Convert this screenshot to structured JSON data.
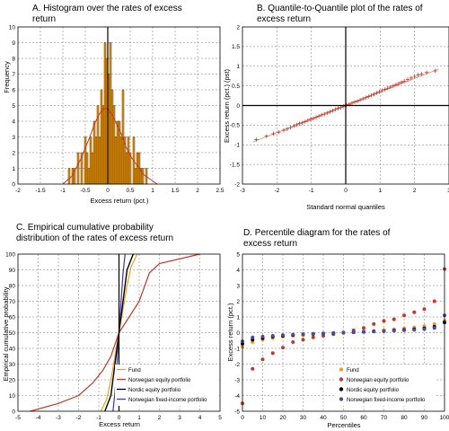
{
  "chart_data": [
    {
      "type": "bar",
      "title": "A. Histogram over the rates of excess return",
      "xlabel": "Excess return (pct.)",
      "ylabel": "Frequency",
      "xlim": [
        -2,
        2.5
      ],
      "ylim": [
        0,
        10
      ],
      "xticks": [
        "-2",
        "-1.5",
        "-1",
        "-0.5",
        "0",
        "0.5",
        "1",
        "1.5",
        "2",
        "2.5"
      ],
      "yticks": [
        "0",
        "1",
        "2",
        "3",
        "4",
        "5",
        "6",
        "7",
        "8",
        "9",
        "10"
      ],
      "grid": true,
      "colors": {
        "bar": "#e8950c",
        "bar_edge": "#2a1a00",
        "curve": "#c0392b"
      },
      "bin_width": 0.04,
      "bin_centers": [
        -0.86,
        -0.78,
        -0.74,
        -0.66,
        -0.58,
        -0.5,
        -0.46,
        -0.42,
        -0.38,
        -0.34,
        -0.3,
        -0.26,
        -0.22,
        -0.18,
        -0.14,
        -0.1,
        -0.06,
        -0.02,
        0.02,
        0.06,
        0.1,
        0.14,
        0.18,
        0.22,
        0.26,
        0.3,
        0.34,
        0.38,
        0.42,
        0.46,
        0.5,
        0.58,
        0.62,
        0.66,
        0.7,
        0.74,
        0.78,
        0.86
      ],
      "values": [
        1,
        1,
        1,
        2,
        2,
        3,
        2,
        1,
        3,
        2,
        4,
        3,
        5,
        3,
        6,
        5,
        9,
        8,
        7,
        9,
        6,
        5,
        3,
        4,
        4,
        3,
        6,
        3,
        2,
        3,
        2,
        3,
        1,
        2,
        2,
        1,
        1,
        1
      ],
      "density_curve": {
        "x": [
          -1.0,
          -0.8,
          -0.6,
          -0.4,
          -0.3,
          -0.2,
          -0.1,
          0.0,
          0.1,
          0.2,
          0.3,
          0.4,
          0.5,
          0.6,
          0.8,
          1.0,
          1.1
        ],
        "y": [
          0,
          0.5,
          1.6,
          3.0,
          3.8,
          4.4,
          4.8,
          4.8,
          4.4,
          3.8,
          3.2,
          2.4,
          1.8,
          1.4,
          0.6,
          0.2,
          0
        ]
      }
    },
    {
      "type": "scatter",
      "title": "B. Quantile-to-Quantile plot of the rates of excess return",
      "xlabel": "Standard normal quantiles",
      "ylabel": "Excess return (pct.) (pst)",
      "xlim": [
        -3,
        3
      ],
      "ylim": [
        -2,
        2
      ],
      "xticks": [
        "-3",
        "-2",
        "-1",
        "0",
        "1",
        "2",
        "3"
      ],
      "yticks": [
        "-2",
        "-1.5",
        "-1",
        "-0.5",
        "0",
        "0.5",
        "1",
        "1.5",
        "2"
      ],
      "grid": true,
      "colors": {
        "marker": "#c0392b",
        "line": "#e8a07a"
      },
      "reference_line": {
        "x": [
          -2.7,
          2.7
        ],
        "y": [
          -0.93,
          0.93
        ]
      },
      "points": {
        "x": [
          -2.6,
          -2.3,
          -2.1,
          -1.95,
          -1.8,
          -1.7,
          -1.6,
          -1.5,
          -1.42,
          -1.34,
          -1.26,
          -1.18,
          -1.1,
          -1.02,
          -0.94,
          -0.86,
          -0.78,
          -0.7,
          -0.62,
          -0.54,
          -0.46,
          -0.38,
          -0.3,
          -0.22,
          -0.14,
          -0.06,
          0.02,
          0.1,
          0.18,
          0.26,
          0.34,
          0.42,
          0.5,
          0.58,
          0.66,
          0.74,
          0.82,
          0.9,
          0.98,
          1.06,
          1.14,
          1.22,
          1.3,
          1.38,
          1.46,
          1.54,
          1.62,
          1.7,
          1.8,
          1.9,
          2.0,
          2.1,
          2.2,
          2.35,
          2.6
        ],
        "y": [
          -0.87,
          -0.78,
          -0.72,
          -0.68,
          -0.63,
          -0.6,
          -0.56,
          -0.52,
          -0.49,
          -0.46,
          -0.44,
          -0.41,
          -0.38,
          -0.35,
          -0.33,
          -0.3,
          -0.27,
          -0.24,
          -0.22,
          -0.19,
          -0.16,
          -0.13,
          -0.1,
          -0.07,
          -0.05,
          -0.02,
          0.01,
          0.03,
          0.06,
          0.09,
          0.11,
          0.14,
          0.17,
          0.2,
          0.23,
          0.26,
          0.29,
          0.32,
          0.35,
          0.38,
          0.41,
          0.44,
          0.47,
          0.5,
          0.53,
          0.56,
          0.59,
          0.62,
          0.66,
          0.7,
          0.74,
          0.78,
          0.8,
          0.84,
          0.88
        ]
      }
    },
    {
      "type": "line",
      "title": "C. Empirical cumulative probability distribution of the rates of excess return",
      "xlabel": "Excess return",
      "ylabel": "Empirical cumulative probability",
      "xlim": [
        -5,
        5
      ],
      "ylim": [
        0,
        100
      ],
      "xticks": [
        "-5",
        "-4",
        "-3",
        "-2",
        "-1",
        "0",
        "1",
        "2",
        "3",
        "4",
        "5"
      ],
      "yticks": [
        "0",
        "10",
        "20",
        "30",
        "40",
        "50",
        "60",
        "70",
        "80",
        "90",
        "100"
      ],
      "grid": true,
      "legend_position": "bottom-right",
      "series": [
        {
          "name": "Fund",
          "color": "#f0a020",
          "x": [
            -0.9,
            -0.6,
            -0.4,
            -0.2,
            0.0,
            0.2,
            0.4,
            0.6,
            0.9
          ],
          "y": [
            0,
            8,
            20,
            35,
            50,
            65,
            80,
            92,
            100
          ]
        },
        {
          "name": "Norwegian equity portfolio",
          "color": "#c0392b",
          "x": [
            -4.4,
            -3.0,
            -2.0,
            -1.3,
            -0.8,
            -0.4,
            0.0,
            0.5,
            1.0,
            1.5,
            2.0,
            4.0
          ],
          "y": [
            0,
            5,
            10,
            18,
            26,
            35,
            50,
            60,
            70,
            88,
            94,
            100
          ]
        },
        {
          "name": "Nordic equity portfolio",
          "color": "#000000",
          "x": [
            -0.7,
            -0.4,
            -0.2,
            0.0,
            0.2,
            0.4,
            0.7
          ],
          "y": [
            0,
            10,
            30,
            50,
            70,
            90,
            100
          ]
        },
        {
          "name": "Norwegian fixed-income portfolio",
          "color": "#3a3a9a",
          "x": [
            -0.3,
            -0.2,
            -0.1,
            0.0,
            0.1,
            0.2,
            0.3
          ],
          "y": [
            0,
            12,
            30,
            50,
            70,
            88,
            100
          ]
        }
      ]
    },
    {
      "type": "scatter",
      "title": "D. Percentile diagram for the rates of excess return",
      "xlabel": "Percentiles",
      "ylabel": "Excess return (pct.)",
      "xlim": [
        0,
        100
      ],
      "ylim": [
        -5,
        5
      ],
      "xticks": [
        "0",
        "10",
        "20",
        "30",
        "40",
        "50",
        "60",
        "70",
        "80",
        "90",
        "100"
      ],
      "yticks": [
        "-5",
        "-4",
        "-3",
        "-2",
        "-1",
        "0",
        "1",
        "2",
        "3",
        "4",
        "5"
      ],
      "grid": true,
      "legend_position": "bottom-right",
      "x": [
        0,
        5,
        10,
        15,
        20,
        25,
        30,
        35,
        40,
        45,
        50,
        55,
        60,
        65,
        70,
        75,
        80,
        85,
        90,
        95,
        100
      ],
      "series": [
        {
          "name": "Fund",
          "color": "#f0a020",
          "y": [
            -0.9,
            -0.6,
            -0.45,
            -0.35,
            -0.25,
            -0.2,
            -0.15,
            -0.1,
            -0.05,
            -0.02,
            0.0,
            0.03,
            0.08,
            0.12,
            0.17,
            0.22,
            0.28,
            0.34,
            0.42,
            0.55,
            0.75
          ]
        },
        {
          "name": "Norwegian equity portfolio",
          "color": "#c0392b",
          "y": [
            -4.5,
            -2.3,
            -1.7,
            -1.3,
            -0.95,
            -0.6,
            -0.45,
            -0.3,
            -0.2,
            -0.1,
            0.0,
            0.15,
            0.3,
            0.55,
            0.75,
            0.85,
            1.1,
            1.3,
            1.5,
            2.0,
            4.05
          ]
        },
        {
          "name": "Nordic equity portfolio",
          "color": "#000000",
          "y": [
            -0.7,
            -0.45,
            -0.35,
            -0.25,
            -0.2,
            -0.15,
            -0.1,
            -0.08,
            -0.05,
            -0.02,
            0.0,
            0.02,
            0.05,
            0.08,
            0.1,
            0.14,
            0.18,
            0.22,
            0.28,
            0.38,
            0.65
          ]
        },
        {
          "name": "Norwegian fixed-income portfolio",
          "color": "#4a4aa8",
          "y": [
            -0.55,
            -0.3,
            -0.25,
            -0.2,
            -0.15,
            -0.12,
            -0.1,
            -0.07,
            -0.05,
            -0.02,
            0.0,
            0.02,
            0.05,
            0.08,
            0.1,
            0.12,
            0.15,
            0.18,
            0.22,
            0.3,
            1.1
          ]
        }
      ]
    }
  ]
}
